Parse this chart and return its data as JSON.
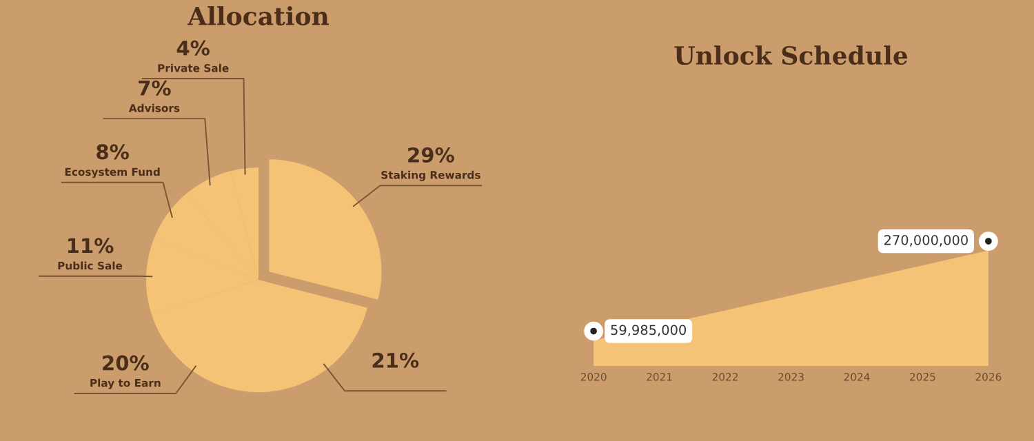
{
  "chart_data": [
    {
      "type": "pie",
      "title": "Allocation",
      "categories": [
        "Staking Rewards",
        null,
        "Play to Earn",
        "Public Sale",
        "Ecosystem Fund",
        "Advisors",
        "Private Sale"
      ],
      "values": [
        29,
        21,
        20,
        11,
        8,
        7,
        4
      ],
      "value_labels": [
        "29%",
        "21%",
        "20%",
        "11%",
        "8%",
        "7%",
        "4%"
      ],
      "colors": [
        "#f5c375",
        "#f5c375",
        "#f5c375",
        "#f5c375",
        "#f5c375",
        "#f5c375",
        "#f5c375"
      ]
    },
    {
      "type": "area",
      "title": "Unlock Schedule",
      "categories": [
        "2020",
        "2021",
        "2022",
        "2023",
        "2024",
        "2025",
        "2026"
      ],
      "series": [
        {
          "color": "#f5c375",
          "values": [
            59985000,
            null,
            null,
            null,
            null,
            null,
            270000000
          ],
          "value_labels": [
            "59,985,000",
            null,
            null,
            null,
            null,
            null,
            "270,000,000"
          ]
        }
      ]
    }
  ]
}
